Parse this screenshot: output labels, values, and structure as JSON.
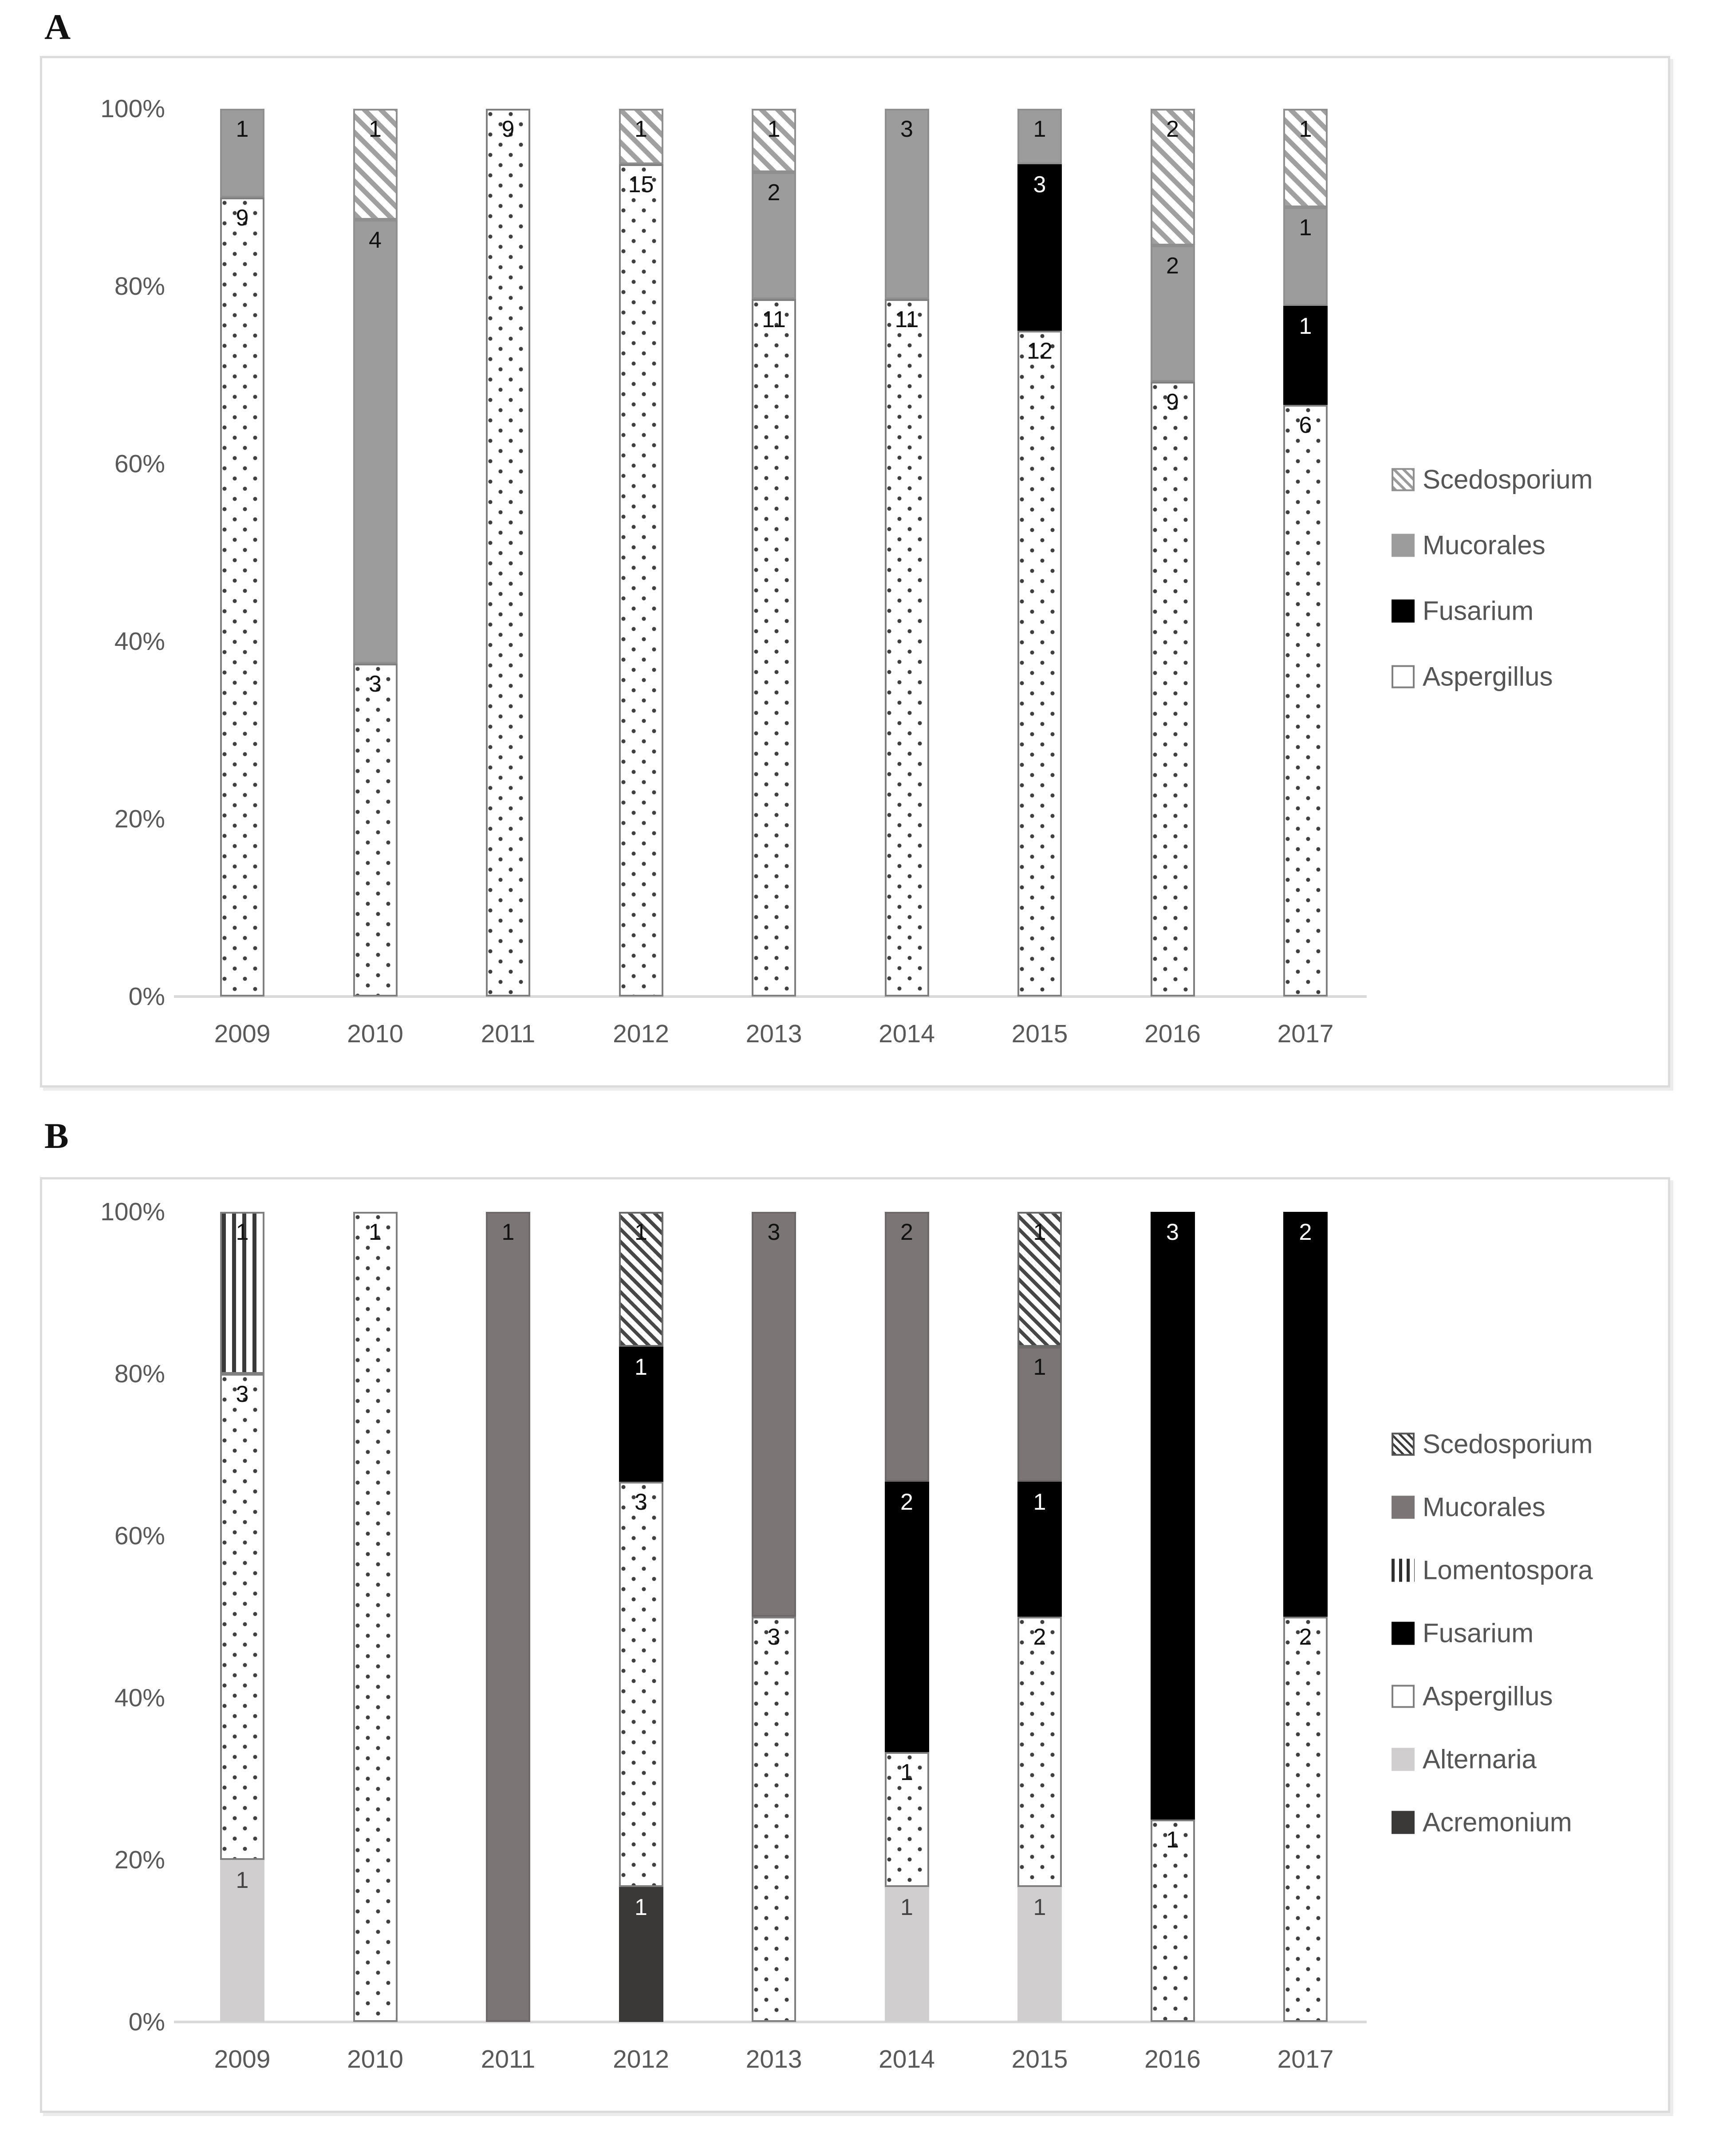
{
  "colors": {
    "background": "#ffffff",
    "axis_line": "#d9d9d9",
    "tick_text": "#595959",
    "legend_text": "#555555",
    "fusarium": "#000000",
    "mucorales_panelA": "#9c9c9c",
    "mucorales_panelB": "#7b7575",
    "alternaria": "#d0cece",
    "acremonium": "#3b3838",
    "aspergillus_fill": "#ffffff",
    "bar_border": "#7f7f7f"
  },
  "chart_data": [
    {
      "type": "bar",
      "stacked": true,
      "percent_axis": true,
      "panel_label": "A",
      "categories": [
        "2009",
        "2010",
        "2011",
        "2012",
        "2013",
        "2014",
        "2015",
        "2016",
        "2017"
      ],
      "series": [
        {
          "name": "Aspergillus",
          "values": [
            9,
            3,
            9,
            15,
            11,
            11,
            12,
            9,
            6
          ]
        },
        {
          "name": "Fusarium",
          "values": [
            0,
            0,
            0,
            0,
            0,
            0,
            3,
            0,
            1
          ]
        },
        {
          "name": "Mucorales",
          "values": [
            1,
            4,
            0,
            0,
            2,
            3,
            1,
            2,
            1
          ]
        },
        {
          "name": "Scedosporium",
          "values": [
            0,
            1,
            0,
            1,
            1,
            0,
            0,
            2,
            1
          ]
        }
      ],
      "y_ticks": [
        "100%",
        "80%",
        "60%",
        "40%",
        "20%",
        "0%"
      ],
      "ylim": [
        0,
        100
      ],
      "grid": false,
      "legend": [
        "Scedosporium",
        "Mucorales",
        "Fusarium",
        "Aspergillus"
      ],
      "legend_position": "right"
    },
    {
      "type": "bar",
      "stacked": true,
      "percent_axis": true,
      "panel_label": "B",
      "categories": [
        "2009",
        "2010",
        "2011",
        "2012",
        "2013",
        "2014",
        "2015",
        "2016",
        "2017"
      ],
      "series": [
        {
          "name": "Acremonium",
          "values": [
            0,
            0,
            0,
            1,
            0,
            0,
            0,
            0,
            0
          ]
        },
        {
          "name": "Alternaria",
          "values": [
            1,
            0,
            0,
            0,
            0,
            1,
            1,
            0,
            0
          ]
        },
        {
          "name": "Aspergillus",
          "values": [
            3,
            1,
            0,
            3,
            3,
            1,
            2,
            1,
            2
          ]
        },
        {
          "name": "Fusarium",
          "values": [
            0,
            0,
            0,
            1,
            0,
            2,
            1,
            3,
            2
          ]
        },
        {
          "name": "Lomentospora",
          "values": [
            1,
            0,
            0,
            0,
            0,
            0,
            0,
            0,
            0
          ]
        },
        {
          "name": "Mucorales",
          "values": [
            0,
            0,
            1,
            0,
            3,
            2,
            1,
            0,
            0
          ]
        },
        {
          "name": "Scedosporium",
          "values": [
            0,
            0,
            0,
            1,
            0,
            0,
            1,
            0,
            0
          ]
        }
      ],
      "y_ticks": [
        "100%",
        "80%",
        "60%",
        "40%",
        "20%",
        "0%"
      ],
      "ylim": [
        0,
        100
      ],
      "grid": false,
      "legend": [
        "Scedosporium",
        "Mucorales",
        "Lomentospora",
        "Fusarium",
        "Aspergillus",
        "Alternaria",
        "Acremonium"
      ],
      "legend_position": "right"
    }
  ]
}
